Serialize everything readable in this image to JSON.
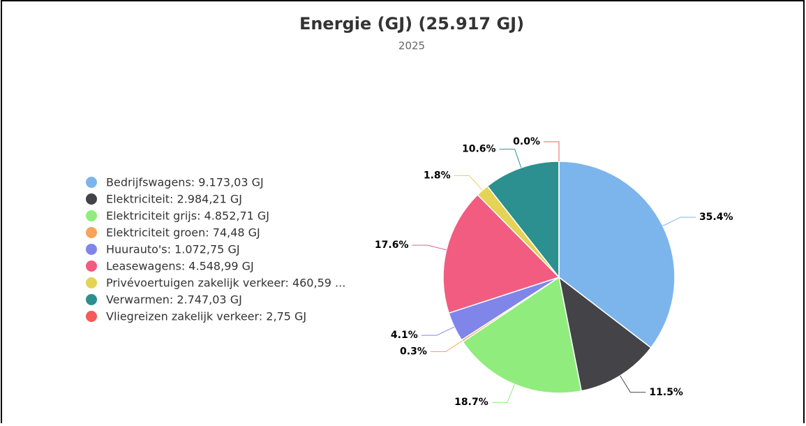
{
  "chart_data": {
    "type": "pie",
    "title": "Energie (GJ) (25.917 GJ)",
    "subtitle": "2025",
    "categories": [
      "Bedrijfswagens",
      "Elektriciteit",
      "Elektriciteit grijs",
      "Elektriciteit groen",
      "Huurauto's",
      "Leasewagens",
      "Privévoertuigen zakelijk verkeer",
      "Verwarmen",
      "Vliegreizen zakelijk verkeer"
    ],
    "legend_labels": [
      "Bedrijfswagens: 9.173,03 GJ",
      "Elektriciteit: 2.984,21 GJ",
      "Elektriciteit grijs: 4.852,71 GJ",
      "Elektriciteit groen: 74,48 GJ",
      "Huurauto's: 1.072,75 GJ",
      "Leasewagens: 4.548,99 GJ",
      "Privévoertuigen zakelijk verkeer: 460,59 ...",
      "Verwarmen: 2.747,03 GJ",
      "Vliegreizen zakelijk verkeer: 2,75 GJ"
    ],
    "values": [
      35.4,
      11.5,
      18.7,
      0.3,
      4.1,
      17.6,
      1.8,
      10.6,
      0.0
    ],
    "value_labels": [
      "35.4%",
      "11.5%",
      "18.7%",
      "0.3%",
      "4.1%",
      "17.6%",
      "1.8%",
      "10.6%",
      "0.0%"
    ],
    "colors": [
      "#7cb5ec",
      "#434348",
      "#90ed7d",
      "#f7a35c",
      "#8085e9",
      "#f15c80",
      "#e4d354",
      "#2b908f",
      "#f45b5b"
    ]
  }
}
